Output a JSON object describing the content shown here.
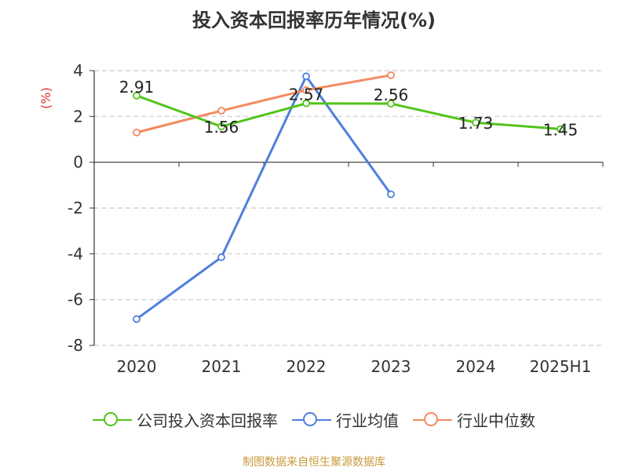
{
  "chart_data": {
    "type": "line",
    "title": "投入资本回报率历年情况(%)",
    "ylabel": "(%)",
    "categories": [
      "2020",
      "2021",
      "2022",
      "2023",
      "2024",
      "2025H1"
    ],
    "ylim": [
      -8,
      4
    ],
    "yticks": [
      4,
      2,
      0,
      -2,
      -4,
      -6,
      -8
    ],
    "grid": true,
    "legend_position": "bottom",
    "series": [
      {
        "name": "公司投入资本回报率",
        "color": "#52c41a",
        "values": [
          2.91,
          1.56,
          2.57,
          2.56,
          1.73,
          1.45
        ],
        "labels": [
          "2.91",
          "1.56",
          "2.57",
          "2.56",
          "1.73",
          "1.45"
        ]
      },
      {
        "name": "行业均值",
        "color": "#4e7fdc",
        "values": [
          -6.85,
          -4.15,
          3.75,
          -1.4,
          null,
          null
        ]
      },
      {
        "name": "行业中位数",
        "color": "#f4895f",
        "values": [
          1.3,
          2.25,
          3.15,
          3.8,
          null,
          null
        ]
      }
    ]
  },
  "footer": {
    "source": "制图数据来自恒生聚源数据库"
  }
}
